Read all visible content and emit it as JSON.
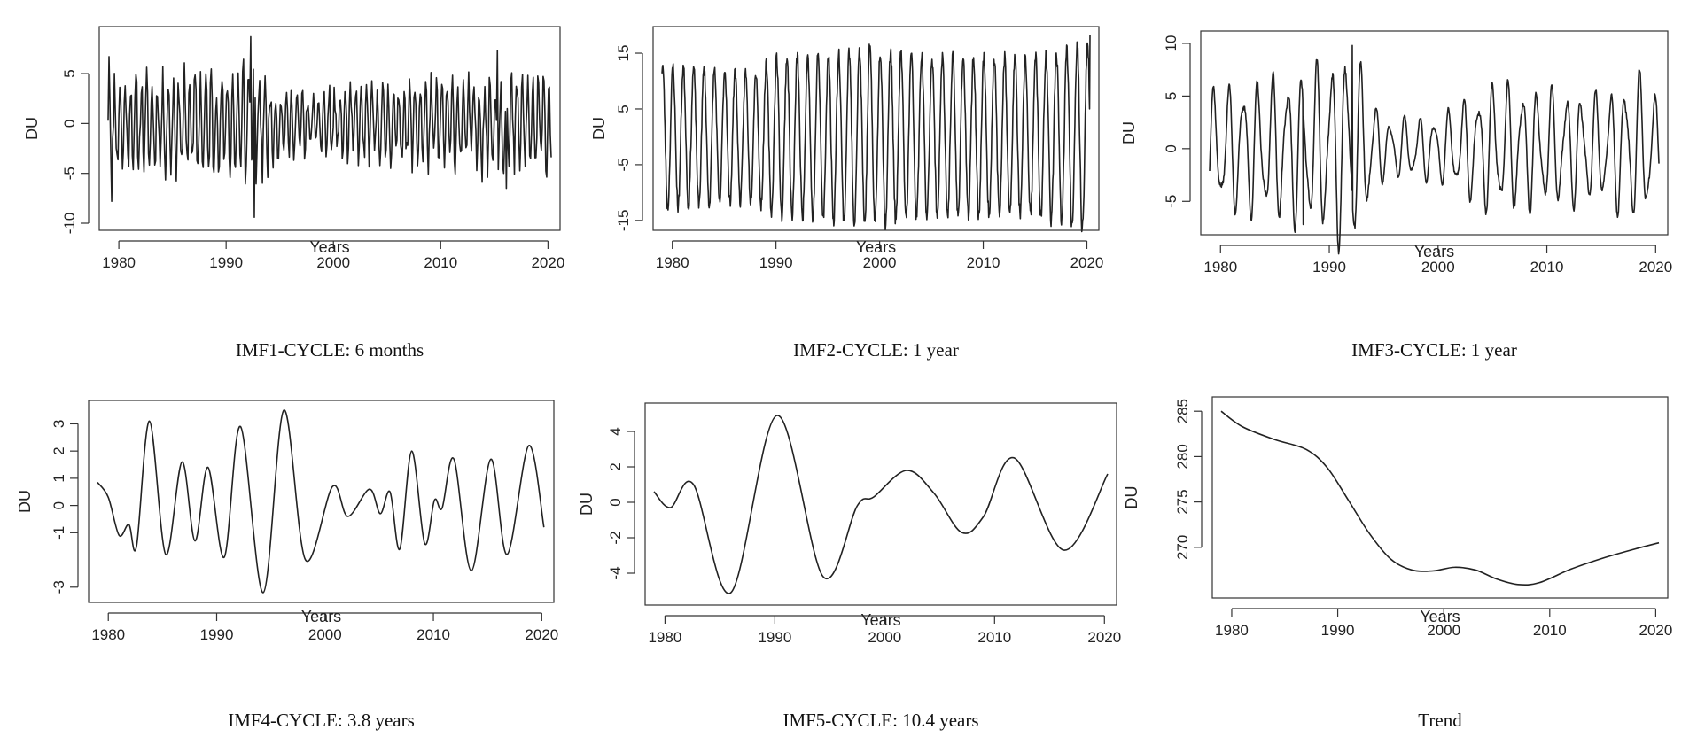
{
  "colors": {
    "line": "#222222",
    "axis": "#333333",
    "background": "#ffffff"
  },
  "chart_data": [
    {
      "type": "line",
      "title": "IMF1-CYCLE: 6 months",
      "xlabel": "Years",
      "ylabel": "DU",
      "xlim": [
        1979,
        2020.3
      ],
      "ylim": [
        -10,
        9
      ],
      "xticks": [
        1980,
        1990,
        2000,
        2010,
        2020
      ],
      "yticks": [
        -10,
        -5,
        0,
        5
      ],
      "signal": {
        "t0": 1979,
        "t1": 2020.3,
        "samples": 495,
        "components": [
          {
            "period": 0.5,
            "amp": 3.6,
            "phase": 0.3
          }
        ],
        "noise": 1.6,
        "seed": 11,
        "envelope": [
          [
            1979,
            1.2
          ],
          [
            1984,
            1.1
          ],
          [
            1990,
            1.35
          ],
          [
            1992.5,
            1.6
          ],
          [
            1995,
            0.8
          ],
          [
            2005,
            0.9
          ],
          [
            2015,
            1.2
          ],
          [
            2020.3,
            1.1
          ]
        ]
      },
      "extremes": [
        {
          "x": 1992.3,
          "y": 8.7
        },
        {
          "x": 1992.6,
          "y": -9.4
        },
        {
          "x": 1979.3,
          "y": -7.8
        },
        {
          "x": 1979.1,
          "y": 6.7
        },
        {
          "x": 2015.3,
          "y": 7.3
        },
        {
          "x": 2016.1,
          "y": -6.5
        }
      ],
      "layout": "top-left"
    },
    {
      "type": "line",
      "title": "IMF2-CYCLE: 1 year",
      "xlabel": "Years",
      "ylabel": "DU",
      "xlim": [
        1979,
        2020.3
      ],
      "ylim": [
        -15.5,
        18.5
      ],
      "xticks": [
        1980,
        1990,
        2000,
        2010,
        2020
      ],
      "yticks": [
        -15,
        -5,
        5,
        15
      ],
      "signal": {
        "t0": 1979,
        "t1": 2020.3,
        "samples": 990,
        "components": [
          {
            "period": 1.0,
            "amp": 13.5,
            "phase": 1.2
          }
        ],
        "noise": 1.2,
        "seed": 23,
        "envelope": [
          [
            1979,
            0.95
          ],
          [
            1988,
            0.85
          ],
          [
            1990,
            1.05
          ],
          [
            2000,
            1.15
          ],
          [
            2005,
            1.05
          ],
          [
            2015,
            1.05
          ],
          [
            2020.3,
            1.25
          ]
        ]
      },
      "extremes": [
        {
          "x": 1999.6,
          "y": -15.2
        },
        {
          "x": 2020.3,
          "y": 18.3
        },
        {
          "x": 1999.0,
          "y": 16.6
        }
      ],
      "layout": "top-middle"
    },
    {
      "type": "line",
      "title": "IMF3-CYCLE: 1 year",
      "xlabel": "Years",
      "ylabel": "DU",
      "xlim": [
        1979,
        2020.3
      ],
      "ylim": [
        -7.5,
        10.5
      ],
      "xticks": [
        1980,
        1990,
        2000,
        2010,
        2020
      ],
      "yticks": [
        -5,
        0,
        5,
        10
      ],
      "signal": {
        "t0": 1979,
        "t1": 2020.3,
        "samples": 990,
        "components": [
          {
            "period": 1.35,
            "amp": 4.8,
            "phase": 0.2
          },
          {
            "period": 0.8,
            "amp": 1.4,
            "phase": 1.0
          }
        ],
        "noise": 0.2,
        "seed": 37,
        "envelope": [
          [
            1979,
            1.0
          ],
          [
            1988,
            1.3
          ],
          [
            1992,
            1.7
          ],
          [
            1995,
            0.5
          ],
          [
            2000,
            0.55
          ],
          [
            2005,
            1.1
          ],
          [
            2015,
            0.9
          ],
          [
            2019,
            1.3
          ],
          [
            2020.3,
            0.8
          ]
        ]
      },
      "extremes": [
        {
          "x": 1992.1,
          "y": 9.8
        },
        {
          "x": 1987.6,
          "y": -7.2
        }
      ],
      "layout": "top-right"
    },
    {
      "type": "line",
      "title": "IMF4-CYCLE: 3.8 years",
      "xlabel": "Years",
      "ylabel": "DU",
      "xlim": [
        1979,
        2020.3
      ],
      "ylim": [
        -3.3,
        3.6
      ],
      "xticks": [
        1980,
        1990,
        2000,
        2010,
        2020
      ],
      "yticks": [
        -3,
        -1,
        0,
        1,
        2,
        3
      ],
      "points": [
        [
          1979,
          0.85
        ],
        [
          1980,
          0.3
        ],
        [
          1981,
          -1.1
        ],
        [
          1981.9,
          -0.7
        ],
        [
          1982.6,
          -1.5
        ],
        [
          1983.8,
          3.1
        ],
        [
          1985.3,
          -1.8
        ],
        [
          1986.8,
          1.6
        ],
        [
          1988.0,
          -1.3
        ],
        [
          1989.2,
          1.4
        ],
        [
          1990.7,
          -1.9
        ],
        [
          1992.2,
          2.9
        ],
        [
          1994.3,
          -3.2
        ],
        [
          1996.2,
          3.5
        ],
        [
          1998.2,
          -2.0
        ],
        [
          2000.7,
          0.7
        ],
        [
          2002.1,
          -0.4
        ],
        [
          2004.1,
          0.6
        ],
        [
          2005.1,
          -0.3
        ],
        [
          2006.0,
          0.5
        ],
        [
          2006.9,
          -1.6
        ],
        [
          2008.0,
          2.0
        ],
        [
          2009.2,
          -1.4
        ],
        [
          2010.1,
          0.2
        ],
        [
          2010.8,
          -0.1
        ],
        [
          2011.9,
          1.7
        ],
        [
          2013.5,
          -2.4
        ],
        [
          2015.3,
          1.7
        ],
        [
          2016.8,
          -1.8
        ],
        [
          2018.8,
          2.2
        ],
        [
          2020.2,
          -0.8
        ]
      ],
      "layout": "bottom-left"
    },
    {
      "type": "line",
      "title": "IMF5-CYCLE: 10.4 years",
      "xlabel": "Years",
      "ylabel": "DU",
      "xlim": [
        1979,
        2020.3
      ],
      "ylim": [
        -5.4,
        5.2
      ],
      "xticks": [
        1980,
        1990,
        2000,
        2010,
        2020
      ],
      "yticks": [
        -4,
        -2,
        0,
        2,
        4
      ],
      "points": [
        [
          1979,
          0.6
        ],
        [
          1980.5,
          -0.3
        ],
        [
          1982.6,
          1.0
        ],
        [
          1986.0,
          -5.1
        ],
        [
          1990.2,
          4.9
        ],
        [
          1994.4,
          -4.2
        ],
        [
          1997.5,
          -0.2
        ],
        [
          1999.0,
          0.3
        ],
        [
          2002.0,
          1.8
        ],
        [
          2004.5,
          0.5
        ],
        [
          2007.0,
          -1.7
        ],
        [
          2009.0,
          -0.8
        ],
        [
          2011.8,
          2.5
        ],
        [
          2016.3,
          -2.7
        ],
        [
          2020.3,
          1.6
        ]
      ],
      "layout": "bottom-middle"
    },
    {
      "type": "line",
      "title": "Trend",
      "xlabel": "Years",
      "ylabel": "DU",
      "xlim": [
        1979,
        2020.3
      ],
      "ylim": [
        265.2,
        285.8
      ],
      "xticks": [
        1980,
        1990,
        2000,
        2010,
        2020
      ],
      "yticks": [
        270,
        275,
        280,
        285
      ],
      "points": [
        [
          1979,
          285.0
        ],
        [
          1981,
          283.3
        ],
        [
          1984,
          281.9
        ],
        [
          1987,
          280.8
        ],
        [
          1989,
          278.8
        ],
        [
          1991,
          275.2
        ],
        [
          1993,
          271.5
        ],
        [
          1995,
          268.7
        ],
        [
          1997,
          267.5
        ],
        [
          1999,
          267.4
        ],
        [
          2001,
          267.8
        ],
        [
          2003,
          267.5
        ],
        [
          2005,
          266.5
        ],
        [
          2007,
          265.9
        ],
        [
          2009,
          266.1
        ],
        [
          2012,
          267.6
        ],
        [
          2015,
          268.8
        ],
        [
          2018,
          269.8
        ],
        [
          2020.3,
          270.5
        ]
      ],
      "layout": "bottom-right"
    }
  ]
}
